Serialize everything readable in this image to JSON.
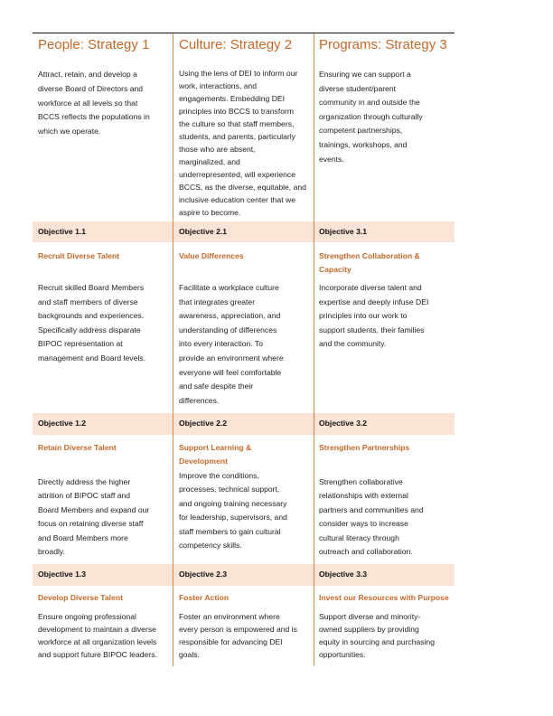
{
  "colors": {
    "accent": "#c4692a",
    "band": "#fbe4d5",
    "divider": "#d98a4f"
  },
  "columns": [
    {
      "heading": "People: Strategy 1",
      "intro": "Attract, retain, and develop a\ndiverse Board of Directors and\nworkforce at all levels so that\nBCCS reflects the populations in\nwhich we operate.",
      "objectives": [
        {
          "label": "Objective 1.1",
          "title": "Recruit Diverse Talent",
          "text": "Recruit skilled Board Members\nand staff members of diverse\nbackgrounds and experiences.\nSpecifically address disparate\nBIPOC representation at\nmanagement and Board levels."
        },
        {
          "label": "Objective 1.2",
          "title": "Retain Diverse Talent",
          "text": "Directly address the higher\nattrition of BIPOC staff and\nBoard Members and expand our\nfocus on retaining diverse staff\nand Board Members more\nbroadly."
        },
        {
          "label": "Objective 1.3",
          "title": "Develop Diverse Talent",
          "text": "Ensure ongoing professional\ndevelopment to maintain a diverse\nworkforce at all organization levels\nand support future BIPOC leaders."
        }
      ]
    },
    {
      "heading": "Culture: Strategy 2",
      "intro": "Using the lens of DEI to inform our\nwork, interactions, and\nengagements. Embedding DEI\nprinciples into BCCS to transform\nthe culture so that staff members,\nstudents, and parents, particularly\nthose who are absent,\nmarginalized, and\nunderrepresented, will experience\nBCCS, as the diverse, equitable, and\ninclusive education center that we\naspire to become.",
      "objectives": [
        {
          "label": "Objective 2.1",
          "title": "Value Differences",
          "text": "Facilitate a workplace culture\nthat integrates greater\nawareness, appreciation, and\nunderstanding of differences\ninto every interaction. To\nprovide an environment where\neveryone will feel comfortable\nand safe despite their\ndifferences."
        },
        {
          "label": "Objective 2.2",
          "title": "Support Learning &\nDevelopment",
          "text": "Improve the conditions,\nprocesses, technical support,\nand ongoing training necessary\nfor leadership, supervisors, and\nstaff members to gain cultural\ncompetency skills."
        },
        {
          "label": "Objective 2.3",
          "title": "Foster Action",
          "text": "Foster an environment where\nevery person is empowered and is\nresponsible for advancing DEI\ngoals."
        }
      ]
    },
    {
      "heading": "Programs: Strategy 3",
      "intro": "Ensuring we can support a\ndiverse student/parent\ncommunity in and outside the\norganization through culturally\ncompetent partnerships,\ntrainings, workshops, and\nevents.",
      "objectives": [
        {
          "label": "Objective 3.1",
          "title": "Strengthen Collaboration &\nCapacity",
          "text": "Incorporate diverse talent and\nexpertise and deeply infuse DEI\nprinciples into our work to\nsupport students, their families\nand the community."
        },
        {
          "label": "Objective 3.2",
          "title": "Strengthen Partnerships",
          "text": "Strengthen collaborative\nrelationships with external\npartners and communities and\nconsider ways to increase\ncultural literacy through\noutreach and collaboration."
        },
        {
          "label": "Objective 3.3",
          "title": "Invest our Resources with Purpose",
          "text": "Support diverse and minority-\nowned suppliers by providing\nequity in sourcing and purchasing\nopportunities."
        }
      ]
    }
  ]
}
